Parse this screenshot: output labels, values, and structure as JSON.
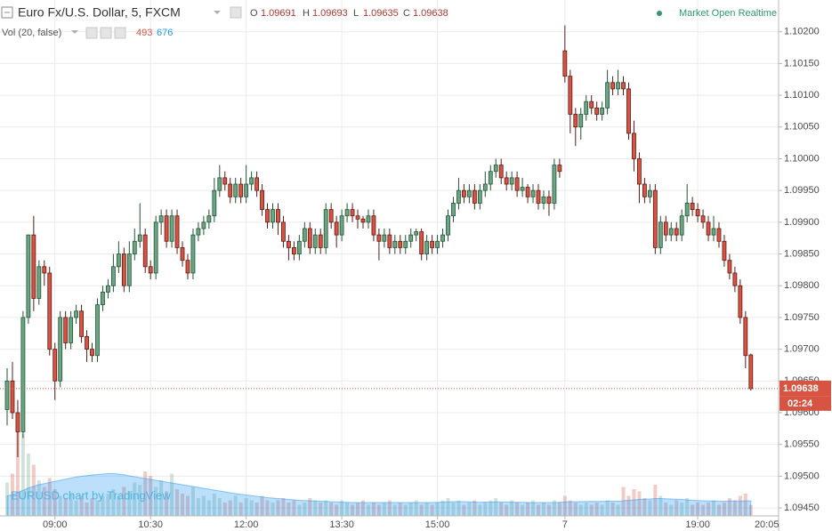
{
  "header": {
    "title": "Euro Fx/U.S. Dollar, 5, FXCM",
    "o_label": "O",
    "h_label": "H",
    "l_label": "L",
    "c_label": "C",
    "volume_title": "Vol (20, false)",
    "status": "Market Open Realtime"
  },
  "chart_data": {
    "type": "candlestick",
    "watermark": "EURUSD chart by TradingView",
    "countdown": "02:24",
    "time_axis_cursor_label": "20:05",
    "ylim": [
      1.094375,
      1.1025
    ],
    "yticks": [
      {
        "value": 1.102,
        "label": "1.10200"
      },
      {
        "value": 1.1015,
        "label": "1.10150"
      },
      {
        "value": 1.101,
        "label": "1.10100"
      },
      {
        "value": 1.1005,
        "label": "1.10050"
      },
      {
        "value": 1.1,
        "label": "1.10000"
      },
      {
        "value": 1.0995,
        "label": "1.09950"
      },
      {
        "value": 1.099,
        "label": "1.09900"
      },
      {
        "value": 1.0985,
        "label": "1.09850"
      },
      {
        "value": 1.098,
        "label": "1.09800"
      },
      {
        "value": 1.0975,
        "label": "1.09750"
      },
      {
        "value": 1.097,
        "label": "1.09700"
      },
      {
        "value": 1.0965,
        "label": "1.09650"
      },
      {
        "value": 1.096,
        "label": "1.09600"
      },
      {
        "value": 1.0955,
        "label": "1.09550"
      },
      {
        "value": 1.095,
        "label": "1.09500"
      },
      {
        "value": 1.0945,
        "label": "1.09450"
      }
    ],
    "grid": true,
    "up_color": "#6ba583",
    "down_color": "#d75442",
    "volume_ma_color": "#2196f3",
    "volume_ylim": [
      0,
      6000
    ],
    "categories": [
      null,
      null,
      null,
      null,
      null,
      null,
      null,
      null,
      null,
      "09:00",
      null,
      null,
      null,
      null,
      null,
      null,
      null,
      null,
      null,
      null,
      null,
      null,
      null,
      null,
      null,
      null,
      null,
      "10:30",
      null,
      null,
      null,
      null,
      null,
      null,
      null,
      null,
      null,
      null,
      null,
      null,
      null,
      null,
      null,
      null,
      null,
      "12:00",
      null,
      null,
      null,
      null,
      null,
      null,
      null,
      null,
      null,
      null,
      null,
      null,
      null,
      null,
      null,
      null,
      null,
      "13:30",
      null,
      null,
      null,
      null,
      null,
      null,
      null,
      null,
      null,
      null,
      null,
      null,
      null,
      null,
      null,
      null,
      null,
      "15:00",
      null,
      null,
      null,
      null,
      null,
      null,
      null,
      null,
      null,
      null,
      null,
      null,
      null,
      null,
      null,
      null,
      null,
      null,
      null,
      null,
      null,
      null,
      null,
      "7",
      null,
      null,
      null,
      null,
      null,
      null,
      null,
      null,
      null,
      null,
      null,
      null,
      null,
      null,
      null,
      null,
      null,
      null,
      null,
      null,
      null,
      null,
      null,
      null,
      "19:00",
      null,
      null,
      null,
      null,
      null,
      null,
      null,
      null,
      null,
      null
    ],
    "open": [
      1.09605,
      1.0965,
      1.096,
      1.0957,
      1.0975,
      1.0988,
      1.0978,
      1.0983,
      1.0982,
      1.097,
      1.0965,
      1.0975,
      1.0971,
      1.0975,
      1.0976,
      1.0972,
      1.097,
      1.0969,
      1.0977,
      1.0979,
      1.098,
      1.0983,
      1.0985,
      1.098,
      1.0985,
      1.0987,
      1.0988,
      1.0983,
      1.0982,
      1.099,
      1.0991,
      1.0987,
      1.0991,
      1.0986,
      1.0984,
      1.0982,
      1.0988,
      1.0989,
      1.099,
      1.0991,
      1.0995,
      1.0997,
      1.0996,
      1.0994,
      1.0996,
      1.0994,
      1.0996,
      1.0997,
      1.0995,
      1.0992,
      1.099,
      1.0992,
      1.099,
      1.0987,
      1.0986,
      1.0985,
      1.0987,
      1.0989,
      1.0986,
      1.0988,
      1.0986,
      1.0992,
      1.099,
      1.0988,
      1.0991,
      1.0992,
      1.0991,
      1.09905,
      1.099,
      1.0991,
      1.0988,
      1.0987,
      1.0988,
      1.0986,
      1.0987,
      1.0986,
      1.0987,
      1.0988,
      1.09885,
      1.0985,
      1.0987,
      1.0986,
      1.0987,
      1.0988,
      1.0991,
      1.0993,
      1.0995,
      1.0994,
      1.0995,
      1.0993,
      1.0995,
      1.0996,
      1.0998,
      1.0999,
      1.0997,
      1.0996,
      1.0997,
      1.0995,
      1.09955,
      1.0994,
      1.0995,
      1.0993,
      1.0994,
      1.0993,
      1.0999,
      1.1017,
      1.1013,
      1.1007,
      1.1005,
      1.1007,
      1.1009,
      1.1008,
      1.1007,
      1.1008,
      1.1012,
      1.1011,
      1.1012,
      1.1011,
      1.1004,
      1.1,
      1.0996,
      1.0994,
      1.0995,
      1.0986,
      1.099,
      1.0988,
      1.0989,
      1.0988,
      1.0991,
      1.0993,
      1.0992,
      1.0991,
      1.099,
      1.0988,
      1.0989,
      1.0987,
      1.0984,
      1.0982,
      1.098,
      1.0975,
      1.09691
    ],
    "high": [
      1.0967,
      1.0968,
      1.0962,
      1.0976,
      1.0988,
      1.0991,
      1.0984,
      1.0984,
      1.0983,
      1.0971,
      1.0976,
      1.0976,
      1.0976,
      1.0977,
      1.0977,
      1.0973,
      1.0971,
      1.0978,
      1.098,
      1.0981,
      1.0985,
      1.0987,
      1.0986,
      1.0987,
      1.0989,
      1.0993,
      1.0989,
      1.0984,
      1.0991,
      1.0992,
      1.0992,
      1.0992,
      1.0992,
      1.0987,
      1.0985,
      1.0989,
      1.099,
      1.0991,
      1.0992,
      1.0997,
      1.0999,
      1.0998,
      1.0997,
      1.0997,
      1.0997,
      1.0999,
      1.0998,
      1.0998,
      1.0996,
      1.0993,
      1.0993,
      1.0993,
      1.0991,
      1.0988,
      1.0987,
      1.0988,
      1.099,
      1.099,
      1.0989,
      1.0989,
      1.0993,
      1.0993,
      1.0991,
      1.0992,
      1.0993,
      1.0993,
      1.0992,
      1.0991,
      1.0992,
      1.0992,
      1.0989,
      1.0989,
      1.0989,
      1.0988,
      1.0988,
      1.0988,
      1.0989,
      1.0989,
      1.0989,
      1.0988,
      1.0988,
      1.0988,
      1.0989,
      1.0992,
      1.0994,
      1.0997,
      1.0996,
      1.0996,
      1.0996,
      1.0996,
      1.0998,
      1.0999,
      1.1,
      1.1,
      1.0998,
      1.0998,
      1.0998,
      1.0997,
      1.0996,
      1.0996,
      1.0996,
      1.0995,
      1.0995,
      1.1,
      1.1,
      1.1021,
      1.1014,
      1.1008,
      1.1008,
      1.101,
      1.101,
      1.1009,
      1.1009,
      1.1014,
      1.1013,
      1.1014,
      1.1013,
      1.1012,
      1.1006,
      1.1001,
      1.0997,
      1.0996,
      1.0996,
      1.0991,
      1.0991,
      1.099,
      1.099,
      1.0992,
      1.0996,
      1.0994,
      1.0993,
      1.0992,
      1.0991,
      1.0991,
      1.099,
      1.0988,
      1.0985,
      1.0983,
      1.0981,
      1.0976,
      1.09693
    ],
    "low": [
      1.0958,
      1.0959,
      1.0953,
      1.0956,
      1.0974,
      1.0976,
      1.0977,
      1.098,
      1.0969,
      1.0962,
      1.0964,
      1.097,
      1.097,
      1.0974,
      1.0971,
      1.0968,
      1.0968,
      1.0968,
      1.0976,
      1.0978,
      1.0979,
      1.0982,
      1.0979,
      1.0979,
      1.0984,
      1.0986,
      1.0982,
      1.0981,
      1.0981,
      1.0988,
      1.0986,
      1.0986,
      1.0985,
      1.0983,
      1.0981,
      1.0981,
      1.0987,
      1.0988,
      1.0989,
      1.099,
      1.0994,
      1.0995,
      1.0993,
      1.0993,
      1.0993,
      1.0993,
      1.0995,
      1.0994,
      1.0991,
      1.0989,
      1.0989,
      1.0988,
      1.0986,
      1.0984,
      1.0984,
      1.0984,
      1.0986,
      1.0985,
      1.0985,
      1.0985,
      1.0985,
      1.0989,
      1.0986,
      1.0987,
      1.099,
      1.099,
      1.0989,
      1.0989,
      1.0989,
      1.0987,
      1.0984,
      1.0986,
      1.0985,
      1.0985,
      1.0985,
      1.0985,
      1.0986,
      1.0987,
      1.0984,
      1.0984,
      1.0985,
      1.0985,
      1.0986,
      1.0987,
      1.099,
      1.0992,
      1.0993,
      1.0993,
      1.0992,
      1.0992,
      1.0994,
      1.0995,
      1.0997,
      1.0996,
      1.0995,
      1.0995,
      1.0994,
      1.0994,
      1.0993,
      1.0993,
      1.0992,
      1.0992,
      1.0991,
      1.0992,
      1.0997,
      1.1012,
      1.1004,
      1.1002,
      1.1003,
      1.1006,
      1.1007,
      1.1006,
      1.1006,
      1.1007,
      1.101,
      1.101,
      1.101,
      1.1003,
      1.0998,
      1.0993,
      1.0993,
      1.0993,
      1.0985,
      1.0985,
      1.0987,
      1.0987,
      1.0987,
      1.0987,
      1.099,
      1.0991,
      1.099,
      1.0989,
      1.0987,
      1.0987,
      1.0986,
      1.0983,
      1.0981,
      1.0979,
      1.0974,
      1.0967,
      1.09635
    ],
    "close": [
      1.0965,
      1.096,
      1.0957,
      1.0975,
      1.0988,
      1.0978,
      1.0983,
      1.0982,
      1.097,
      1.0965,
      1.0975,
      1.0971,
      1.0975,
      1.0976,
      1.0972,
      1.097,
      1.0969,
      1.0977,
      1.0979,
      1.098,
      1.0983,
      1.0985,
      1.098,
      1.0985,
      1.0987,
      1.0988,
      1.0983,
      1.0982,
      1.099,
      1.0991,
      1.0987,
      1.0991,
      1.0986,
      1.0984,
      1.0982,
      1.0988,
      1.0989,
      1.099,
      1.0991,
      1.0995,
      1.0997,
      1.0996,
      1.0994,
      1.0996,
      1.0994,
      1.0996,
      1.0997,
      1.0995,
      1.0992,
      1.099,
      1.0992,
      1.099,
      1.0987,
      1.0986,
      1.0985,
      1.0987,
      1.0989,
      1.0986,
      1.0988,
      1.0986,
      1.0992,
      1.099,
      1.0988,
      1.0991,
      1.0992,
      1.0991,
      1.09905,
      1.099,
      1.0991,
      1.0988,
      1.0987,
      1.0988,
      1.0986,
      1.0987,
      1.0986,
      1.0987,
      1.0988,
      1.09885,
      1.0985,
      1.0987,
      1.0986,
      1.0987,
      1.0988,
      1.0991,
      1.0993,
      1.0995,
      1.0994,
      1.0995,
      1.0993,
      1.0995,
      1.0996,
      1.0998,
      1.0999,
      1.0997,
      1.0996,
      1.0997,
      1.0995,
      1.09955,
      1.0994,
      1.0995,
      1.0993,
      1.0994,
      1.0993,
      1.0999,
      1.0998,
      1.1013,
      1.1007,
      1.1005,
      1.1007,
      1.1009,
      1.1008,
      1.1007,
      1.1008,
      1.1012,
      1.1011,
      1.1012,
      1.1011,
      1.1004,
      1.1,
      1.0996,
      1.0994,
      1.0995,
      1.0986,
      1.099,
      1.0988,
      1.0989,
      1.0988,
      1.0991,
      1.0993,
      1.0992,
      1.0991,
      1.099,
      1.0988,
      1.0989,
      1.0987,
      1.0984,
      1.0982,
      1.098,
      1.0975,
      1.0969,
      1.09638
    ],
    "volume": [
      1500,
      1900,
      4000,
      3700,
      2800,
      2300,
      1600,
      1300,
      1700,
      1200,
      900,
      800,
      1000,
      700,
      900,
      600,
      800,
      700,
      900,
      1000,
      1200,
      900,
      1300,
      1100,
      1500,
      1400,
      2000,
      1800,
      1300,
      1600,
      1100,
      1900,
      1200,
      1000,
      900,
      1300,
      800,
      900,
      700,
      1000,
      800,
      600,
      700,
      900,
      600,
      800,
      700,
      600,
      900,
      700,
      600,
      700,
      800,
      600,
      700,
      500,
      600,
      800,
      700,
      600,
      700,
      600,
      500,
      700,
      600,
      500,
      600,
      700,
      500,
      600,
      500,
      600,
      700,
      500,
      600,
      500,
      600,
      700,
      500,
      600,
      500,
      600,
      700,
      800,
      600,
      700,
      500,
      600,
      700,
      500,
      600,
      700,
      800,
      600,
      500,
      700,
      600,
      500,
      600,
      700,
      500,
      600,
      500,
      700,
      600,
      900,
      700,
      600,
      500,
      600,
      500,
      600,
      500,
      700,
      600,
      500,
      1300,
      900,
      1200,
      1100,
      800,
      700,
      1400,
      900,
      600,
      500,
      700,
      600,
      800,
      500,
      600,
      500,
      600,
      700,
      500,
      600,
      800,
      700,
      900,
      1000,
      493
    ],
    "volume_ma": [
      900,
      950,
      1050,
      1150,
      1250,
      1330,
      1400,
      1450,
      1500,
      1550,
      1600,
      1650,
      1700,
      1750,
      1780,
      1810,
      1840,
      1860,
      1880,
      1900,
      1900,
      1880,
      1850,
      1800,
      1760,
      1720,
      1680,
      1640,
      1600,
      1560,
      1520,
      1480,
      1440,
      1400,
      1360,
      1320,
      1280,
      1240,
      1200,
      1160,
      1120,
      1080,
      1040,
      1000,
      970,
      940,
      910,
      880,
      850,
      820,
      800,
      780,
      760,
      740,
      720,
      700,
      690,
      680,
      670,
      660,
      650,
      640,
      630,
      620,
      610,
      600,
      600,
      600,
      600,
      600,
      600,
      600,
      600,
      600,
      600,
      600,
      600,
      600,
      600,
      600,
      600,
      610,
      620,
      630,
      640,
      640,
      640,
      630,
      620,
      610,
      620,
      620,
      630,
      630,
      620,
      620,
      610,
      610,
      600,
      600,
      600,
      600,
      600,
      600,
      610,
      630,
      640,
      640,
      640,
      650,
      650,
      650,
      650,
      660,
      660,
      660,
      680,
      700,
      720,
      740,
      750,
      760,
      780,
      780,
      770,
      760,
      750,
      740,
      720,
      700,
      690,
      680,
      670,
      670,
      660,
      660,
      670,
      670,
      670,
      675,
      676
    ]
  }
}
